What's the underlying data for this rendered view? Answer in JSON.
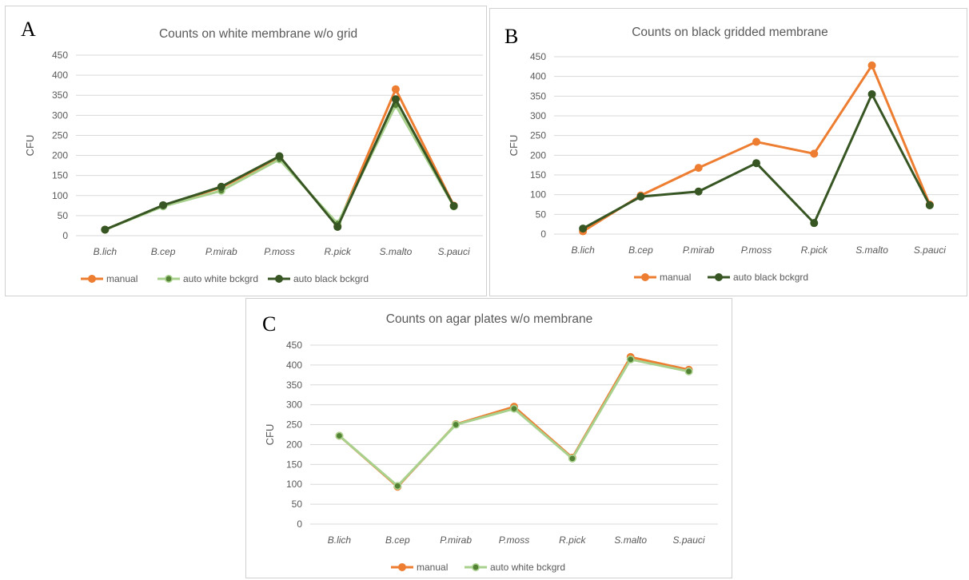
{
  "panels": [
    {
      "letter": "A",
      "chart_data": {
        "type": "line",
        "title": "Counts on white membrane w/o grid",
        "ylabel": "CFU",
        "xlabel": "",
        "ylim": [
          0,
          450
        ],
        "yticks": [
          0,
          50,
          100,
          150,
          200,
          250,
          300,
          350,
          400,
          450
        ],
        "categories": [
          "B.lich",
          "B.cep",
          "P.mirab",
          "P.moss",
          "R.pick",
          "S.malto",
          "S.pauci"
        ],
        "grid": true,
        "legend": "bottom",
        "series": [
          {
            "name": "manual",
            "color": "#ED7D31",
            "marker_fill": "#ED7D31",
            "values": [
              15,
              75,
              120,
              195,
              25,
              365,
              75
            ]
          },
          {
            "name": "auto white bckgrd",
            "color": "#A9D18E",
            "marker_fill": "#548235",
            "marker_stroke": "#A9D18E",
            "values": [
              15,
              73,
              112,
              190,
              30,
              325,
              73
            ]
          },
          {
            "name": "auto black bckgrd",
            "color": "#375623",
            "marker_fill": "#375623",
            "values": [
              15,
              76,
              122,
              198,
              22,
              340,
              74
            ]
          }
        ]
      }
    },
    {
      "letter": "B",
      "chart_data": {
        "type": "line",
        "title": "Counts on black gridded membrane",
        "ylabel": "CFU",
        "xlabel": "",
        "ylim": [
          0,
          450
        ],
        "yticks": [
          0,
          50,
          100,
          150,
          200,
          250,
          300,
          350,
          400,
          450
        ],
        "categories": [
          "B.lich",
          "B.cep",
          "P.mirab",
          "P.moss",
          "R.pick",
          "S.malto",
          "S.pauci"
        ],
        "grid": true,
        "legend": "bottom",
        "series": [
          {
            "name": "manual",
            "color": "#ED7D31",
            "marker_fill": "#ED7D31",
            "values": [
              7,
              98,
              168,
              234,
              204,
              428,
              75
            ]
          },
          {
            "name": "auto black bckgrd",
            "color": "#375623",
            "marker_fill": "#375623",
            "values": [
              14,
              95,
              108,
              180,
              28,
              355,
              73
            ]
          }
        ]
      }
    },
    {
      "letter": "C",
      "chart_data": {
        "type": "line",
        "title": "Counts on agar plates w/o membrane",
        "ylabel": "CFU",
        "xlabel": "",
        "ylim": [
          0,
          450
        ],
        "yticks": [
          0,
          50,
          100,
          150,
          200,
          250,
          300,
          350,
          400,
          450
        ],
        "categories": [
          "B.lich",
          "B.cep",
          "P.mirab",
          "P.moss",
          "R.pick",
          "S.malto",
          "S.pauci"
        ],
        "grid": true,
        "legend": "bottom",
        "series": [
          {
            "name": "manual",
            "color": "#ED7D31",
            "marker_fill": "#ED7D31",
            "values": [
              222,
              94,
              251,
              295,
              167,
              420,
              388
            ]
          },
          {
            "name": "auto white bckgrd",
            "color": "#A9D18E",
            "marker_fill": "#548235",
            "marker_stroke": "#A9D18E",
            "values": [
              222,
              96,
              250,
              290,
              165,
              414,
              384
            ]
          }
        ]
      }
    }
  ]
}
